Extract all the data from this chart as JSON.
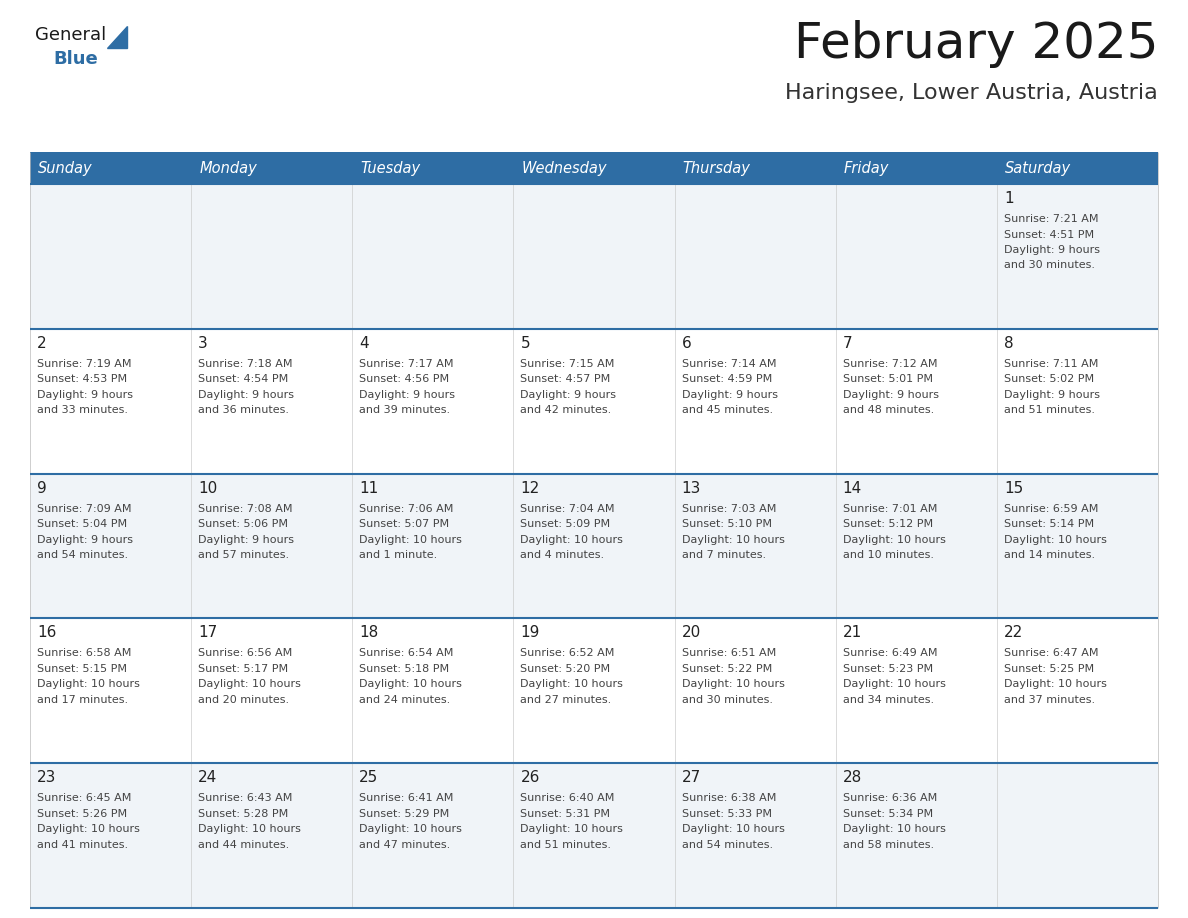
{
  "title": "February 2025",
  "subtitle": "Haringsee, Lower Austria, Austria",
  "header_bg": "#2E6DA4",
  "header_text_color": "#FFFFFF",
  "day_names": [
    "Sunday",
    "Monday",
    "Tuesday",
    "Wednesday",
    "Thursday",
    "Friday",
    "Saturday"
  ],
  "odd_row_bg": "#F0F4F8",
  "even_row_bg": "#FFFFFF",
  "separator_color": "#2E6DA4",
  "text_color": "#333333",
  "day_number_color": "#222222",
  "logo_general_color": "#1a1a1a",
  "logo_blue_color": "#2E6DA4",
  "calendar": [
    [
      null,
      null,
      null,
      null,
      null,
      null,
      {
        "day": "1",
        "sunrise": "7:21 AM",
        "sunset": "4:51 PM",
        "daylight_line1": "Daylight: 9 hours",
        "daylight_line2": "and 30 minutes."
      }
    ],
    [
      {
        "day": "2",
        "sunrise": "7:19 AM",
        "sunset": "4:53 PM",
        "daylight_line1": "Daylight: 9 hours",
        "daylight_line2": "and 33 minutes."
      },
      {
        "day": "3",
        "sunrise": "7:18 AM",
        "sunset": "4:54 PM",
        "daylight_line1": "Daylight: 9 hours",
        "daylight_line2": "and 36 minutes."
      },
      {
        "day": "4",
        "sunrise": "7:17 AM",
        "sunset": "4:56 PM",
        "daylight_line1": "Daylight: 9 hours",
        "daylight_line2": "and 39 minutes."
      },
      {
        "day": "5",
        "sunrise": "7:15 AM",
        "sunset": "4:57 PM",
        "daylight_line1": "Daylight: 9 hours",
        "daylight_line2": "and 42 minutes."
      },
      {
        "day": "6",
        "sunrise": "7:14 AM",
        "sunset": "4:59 PM",
        "daylight_line1": "Daylight: 9 hours",
        "daylight_line2": "and 45 minutes."
      },
      {
        "day": "7",
        "sunrise": "7:12 AM",
        "sunset": "5:01 PM",
        "daylight_line1": "Daylight: 9 hours",
        "daylight_line2": "and 48 minutes."
      },
      {
        "day": "8",
        "sunrise": "7:11 AM",
        "sunset": "5:02 PM",
        "daylight_line1": "Daylight: 9 hours",
        "daylight_line2": "and 51 minutes."
      }
    ],
    [
      {
        "day": "9",
        "sunrise": "7:09 AM",
        "sunset": "5:04 PM",
        "daylight_line1": "Daylight: 9 hours",
        "daylight_line2": "and 54 minutes."
      },
      {
        "day": "10",
        "sunrise": "7:08 AM",
        "sunset": "5:06 PM",
        "daylight_line1": "Daylight: 9 hours",
        "daylight_line2": "and 57 minutes."
      },
      {
        "day": "11",
        "sunrise": "7:06 AM",
        "sunset": "5:07 PM",
        "daylight_line1": "Daylight: 10 hours",
        "daylight_line2": "and 1 minute."
      },
      {
        "day": "12",
        "sunrise": "7:04 AM",
        "sunset": "5:09 PM",
        "daylight_line1": "Daylight: 10 hours",
        "daylight_line2": "and 4 minutes."
      },
      {
        "day": "13",
        "sunrise": "7:03 AM",
        "sunset": "5:10 PM",
        "daylight_line1": "Daylight: 10 hours",
        "daylight_line2": "and 7 minutes."
      },
      {
        "day": "14",
        "sunrise": "7:01 AM",
        "sunset": "5:12 PM",
        "daylight_line1": "Daylight: 10 hours",
        "daylight_line2": "and 10 minutes."
      },
      {
        "day": "15",
        "sunrise": "6:59 AM",
        "sunset": "5:14 PM",
        "daylight_line1": "Daylight: 10 hours",
        "daylight_line2": "and 14 minutes."
      }
    ],
    [
      {
        "day": "16",
        "sunrise": "6:58 AM",
        "sunset": "5:15 PM",
        "daylight_line1": "Daylight: 10 hours",
        "daylight_line2": "and 17 minutes."
      },
      {
        "day": "17",
        "sunrise": "6:56 AM",
        "sunset": "5:17 PM",
        "daylight_line1": "Daylight: 10 hours",
        "daylight_line2": "and 20 minutes."
      },
      {
        "day": "18",
        "sunrise": "6:54 AM",
        "sunset": "5:18 PM",
        "daylight_line1": "Daylight: 10 hours",
        "daylight_line2": "and 24 minutes."
      },
      {
        "day": "19",
        "sunrise": "6:52 AM",
        "sunset": "5:20 PM",
        "daylight_line1": "Daylight: 10 hours",
        "daylight_line2": "and 27 minutes."
      },
      {
        "day": "20",
        "sunrise": "6:51 AM",
        "sunset": "5:22 PM",
        "daylight_line1": "Daylight: 10 hours",
        "daylight_line2": "and 30 minutes."
      },
      {
        "day": "21",
        "sunrise": "6:49 AM",
        "sunset": "5:23 PM",
        "daylight_line1": "Daylight: 10 hours",
        "daylight_line2": "and 34 minutes."
      },
      {
        "day": "22",
        "sunrise": "6:47 AM",
        "sunset": "5:25 PM",
        "daylight_line1": "Daylight: 10 hours",
        "daylight_line2": "and 37 minutes."
      }
    ],
    [
      {
        "day": "23",
        "sunrise": "6:45 AM",
        "sunset": "5:26 PM",
        "daylight_line1": "Daylight: 10 hours",
        "daylight_line2": "and 41 minutes."
      },
      {
        "day": "24",
        "sunrise": "6:43 AM",
        "sunset": "5:28 PM",
        "daylight_line1": "Daylight: 10 hours",
        "daylight_line2": "and 44 minutes."
      },
      {
        "day": "25",
        "sunrise": "6:41 AM",
        "sunset": "5:29 PM",
        "daylight_line1": "Daylight: 10 hours",
        "daylight_line2": "and 47 minutes."
      },
      {
        "day": "26",
        "sunrise": "6:40 AM",
        "sunset": "5:31 PM",
        "daylight_line1": "Daylight: 10 hours",
        "daylight_line2": "and 51 minutes."
      },
      {
        "day": "27",
        "sunrise": "6:38 AM",
        "sunset": "5:33 PM",
        "daylight_line1": "Daylight: 10 hours",
        "daylight_line2": "and 54 minutes."
      },
      {
        "day": "28",
        "sunrise": "6:36 AM",
        "sunset": "5:34 PM",
        "daylight_line1": "Daylight: 10 hours",
        "daylight_line2": "and 58 minutes."
      },
      null
    ]
  ]
}
